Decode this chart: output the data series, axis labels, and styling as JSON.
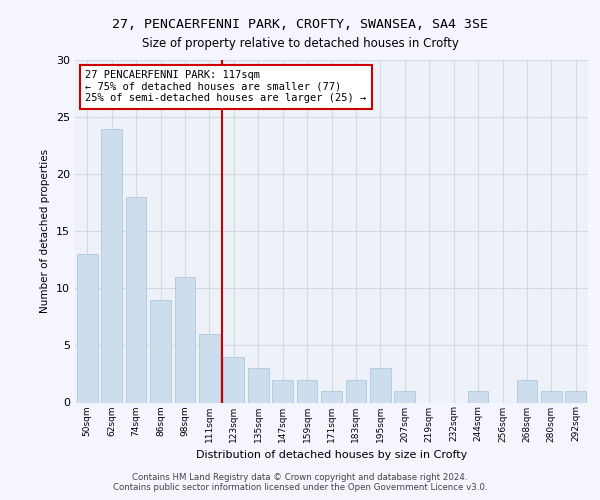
{
  "title1": "27, PENCAERFENNI PARK, CROFTY, SWANSEA, SA4 3SE",
  "title2": "Size of property relative to detached houses in Crofty",
  "xlabel": "Distribution of detached houses by size in Crofty",
  "ylabel": "Number of detached properties",
  "categories": [
    "50sqm",
    "62sqm",
    "74sqm",
    "86sqm",
    "98sqm",
    "111sqm",
    "123sqm",
    "135sqm",
    "147sqm",
    "159sqm",
    "171sqm",
    "183sqm",
    "195sqm",
    "207sqm",
    "219sqm",
    "232sqm",
    "244sqm",
    "256sqm",
    "268sqm",
    "280sqm",
    "292sqm"
  ],
  "values": [
    13,
    24,
    18,
    9,
    11,
    6,
    4,
    3,
    2,
    2,
    1,
    2,
    3,
    1,
    0,
    0,
    1,
    0,
    2,
    1,
    1
  ],
  "bar_color": "#ccdded",
  "bar_edgecolor": "#a8c4d8",
  "vline_x": 5.5,
  "vline_color": "#cc0000",
  "annotation_text": "27 PENCAERFENNI PARK: 117sqm\n← 75% of detached houses are smaller (77)\n25% of semi-detached houses are larger (25) →",
  "annotation_box_color": "#ffffff",
  "annotation_box_edgecolor": "#cc0000",
  "ylim": [
    0,
    30
  ],
  "yticks": [
    0,
    5,
    10,
    15,
    20,
    25,
    30
  ],
  "grid_color": "#d0dae4",
  "background_color": "#eef2f8",
  "fig_facecolor": "#f5f5ff",
  "footer": "Contains HM Land Registry data © Crown copyright and database right 2024.\nContains public sector information licensed under the Open Government Licence v3.0."
}
